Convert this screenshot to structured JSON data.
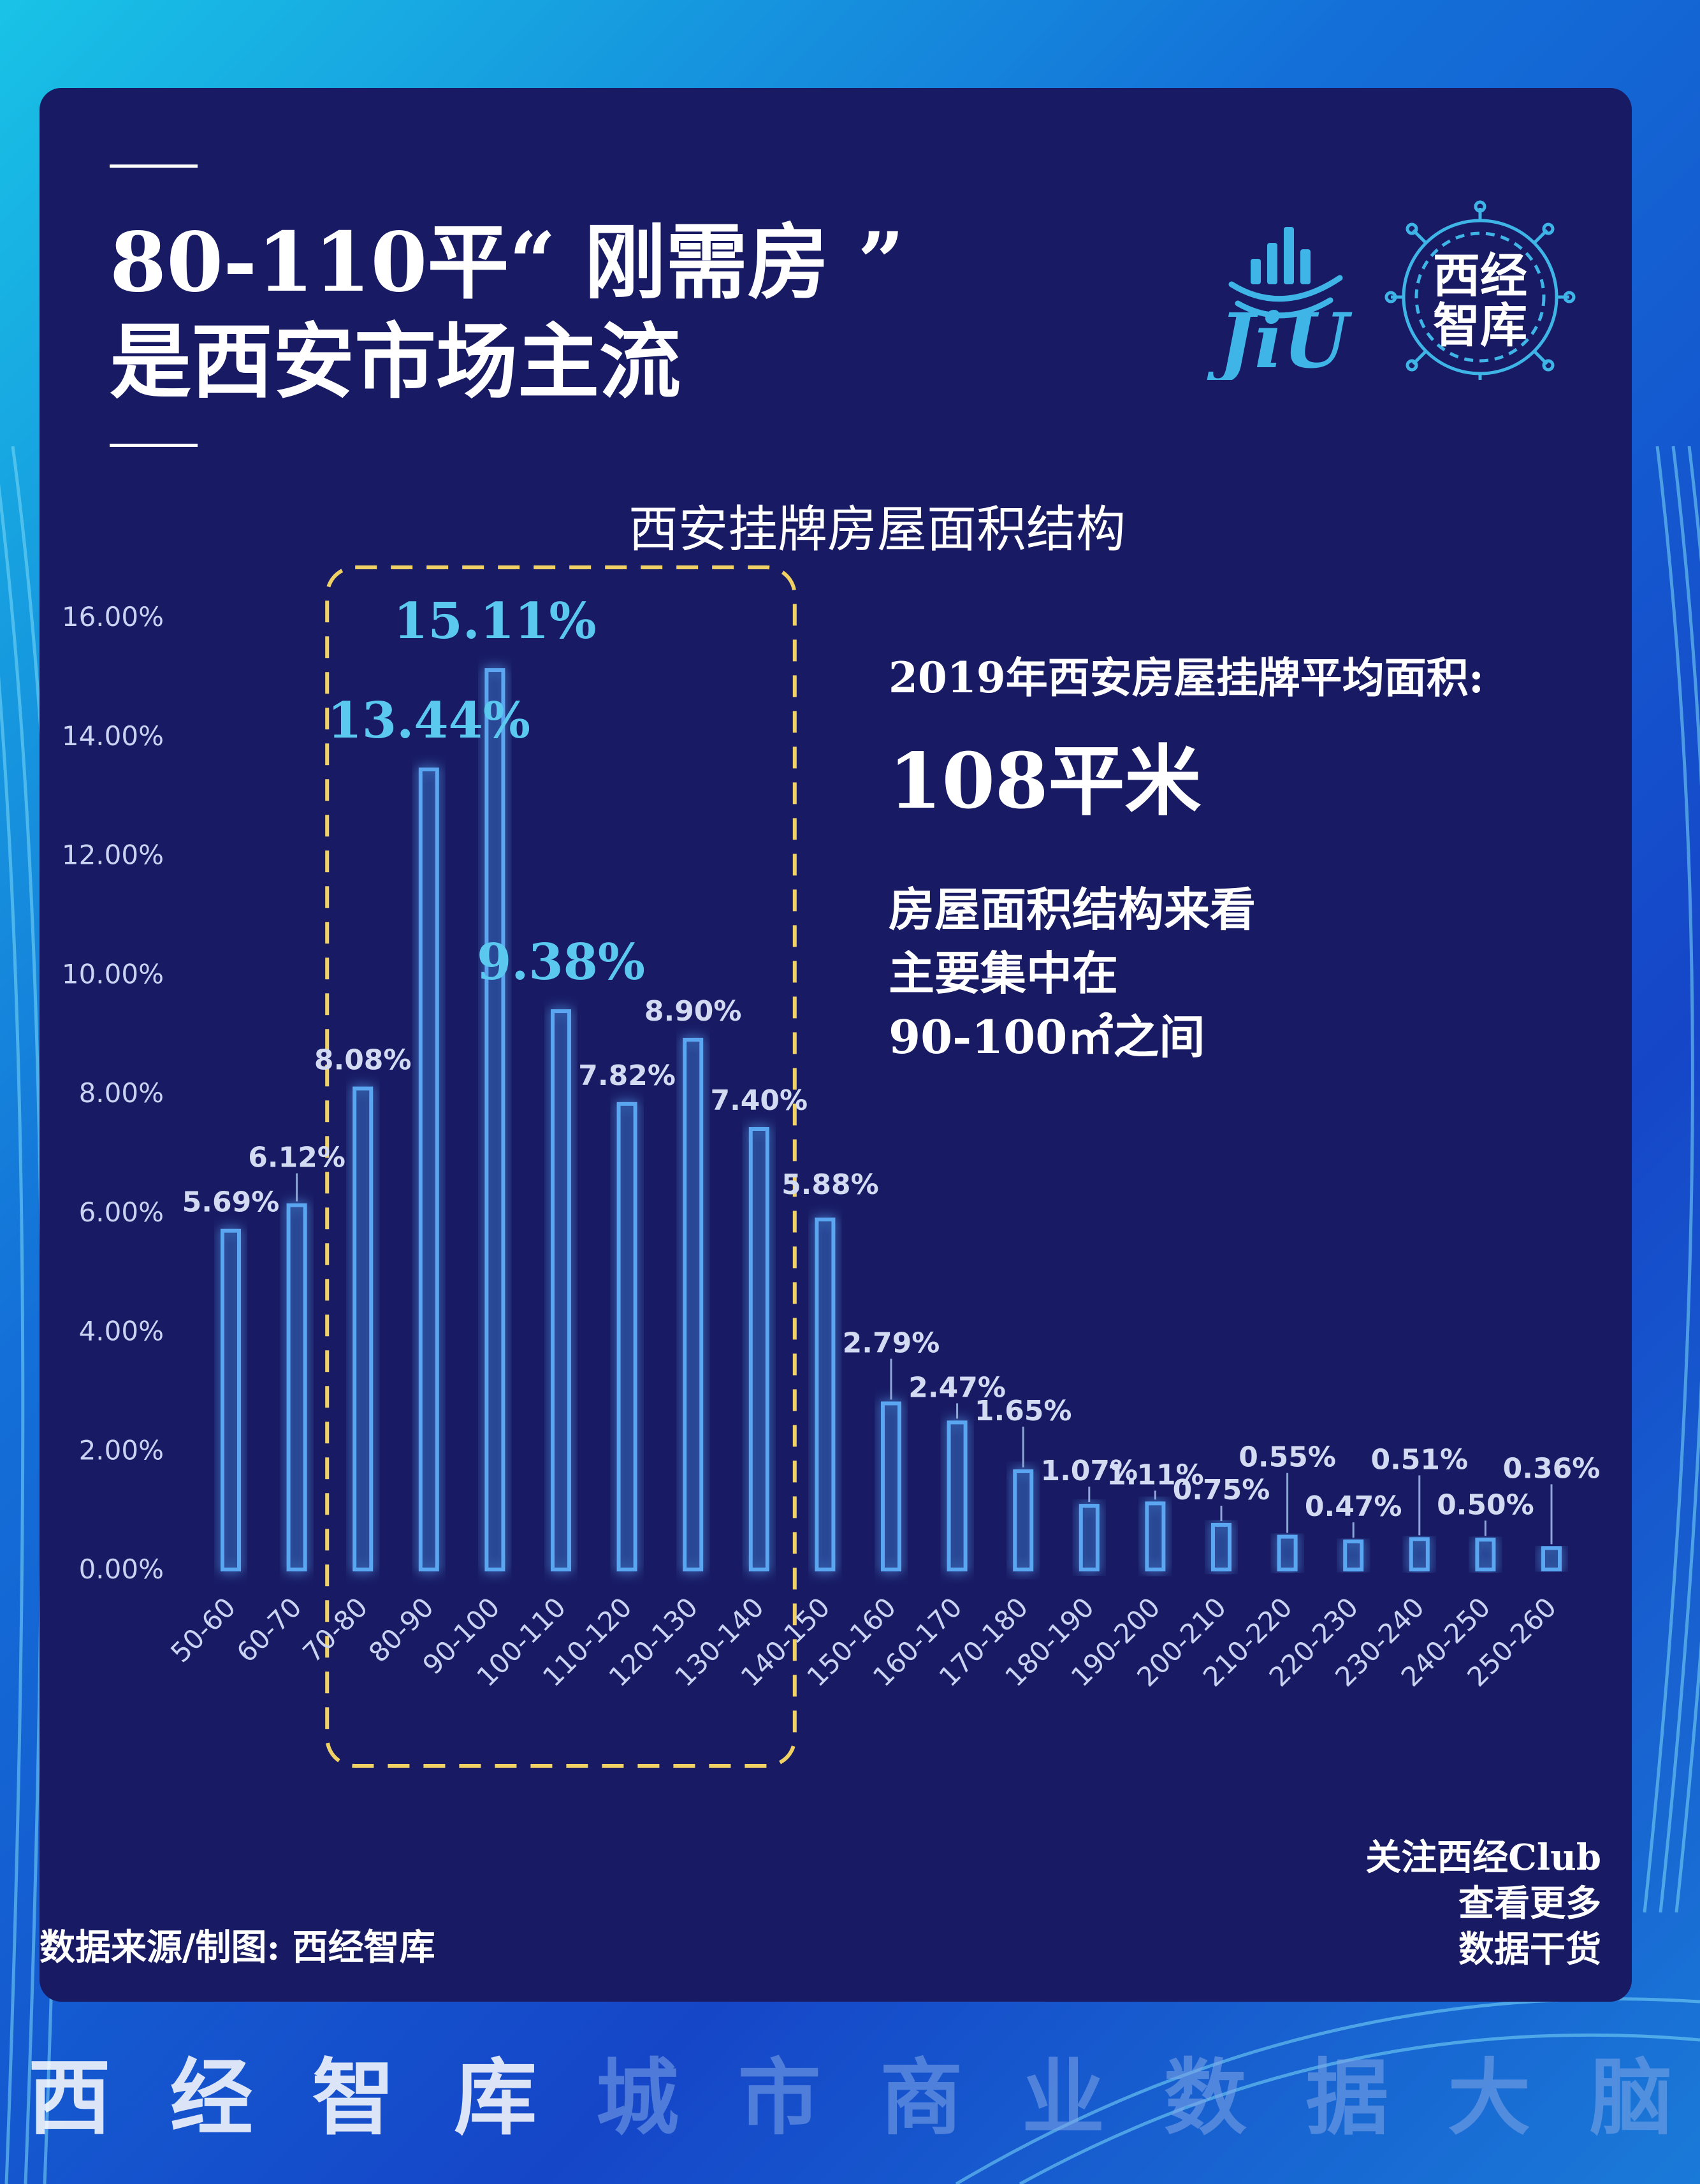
{
  "header": {
    "title_line1": "80-110平“ 刚需房 ”",
    "title_line2": "是西安市场主流"
  },
  "logo": {
    "brand_latin": "JiU",
    "brand_cn_top": "西经",
    "brand_cn_bottom": "智库"
  },
  "info": {
    "avg_label": "2019年西安房屋挂牌平均面积:",
    "avg_value": "108平米",
    "note_line1": "房屋面积结构来看",
    "note_line2": "主要集中在",
    "note_line3": "90-100㎡之间"
  },
  "footer": {
    "source": "数据来源/制图:  西经智库",
    "follow_line1": "关注西经Club",
    "follow_line2": "查看更多",
    "follow_line3": "数据干货",
    "slogan": [
      "西",
      "经",
      "智",
      "库",
      "城",
      "市",
      "商",
      "业",
      "数",
      "据",
      "大",
      "脑"
    ]
  },
  "colors": {
    "panel": "#181b64",
    "bar_stroke": "#5aa6f0",
    "highlight_label": "#5bc8f0",
    "dashed_box": "#f0d264",
    "slogan_bright": "#ffffff",
    "slogan_dim": "#7fa6e8"
  },
  "chart_data": {
    "type": "bar",
    "title": "西安挂牌房屋面积结构",
    "ylim": [
      0,
      16
    ],
    "yticks": [
      "0.00%",
      "2.00%",
      "4.00%",
      "6.00%",
      "8.00%",
      "10.00%",
      "12.00%",
      "14.00%",
      "16.00%"
    ],
    "categories": [
      "50-60",
      "60-70",
      "70-80",
      "80-90",
      "90-100",
      "100-110",
      "110-120",
      "120-130",
      "130-140",
      "140-150",
      "150-160",
      "160-170",
      "170-180",
      "180-190",
      "190-200",
      "200-210",
      "210-220",
      "220-230",
      "230-240",
      "240-250",
      "250-260"
    ],
    "values": [
      5.69,
      6.12,
      8.08,
      13.44,
      15.11,
      9.38,
      7.82,
      8.9,
      7.4,
      5.88,
      2.79,
      2.47,
      1.65,
      1.07,
      1.11,
      0.75,
      0.55,
      0.47,
      0.51,
      0.5,
      0.36
    ],
    "labels": [
      "5.69%",
      "6.12%",
      "8.08%",
      "13.44%",
      "15.11%",
      "9.38%",
      "7.82%",
      "8.90%",
      "7.40%",
      "5.88%",
      "2.79%",
      "2.47%",
      "1.65%",
      "1.07%",
      "1.11%",
      "0.75%",
      "0.55%",
      "0.47%",
      "0.51%",
      "0.50%",
      "0.36%"
    ],
    "highlighted": [
      "80-90",
      "90-100",
      "100-110"
    ],
    "highlight_range": [
      "70-80",
      "130-140"
    ],
    "grid": false,
    "legend": "none"
  }
}
